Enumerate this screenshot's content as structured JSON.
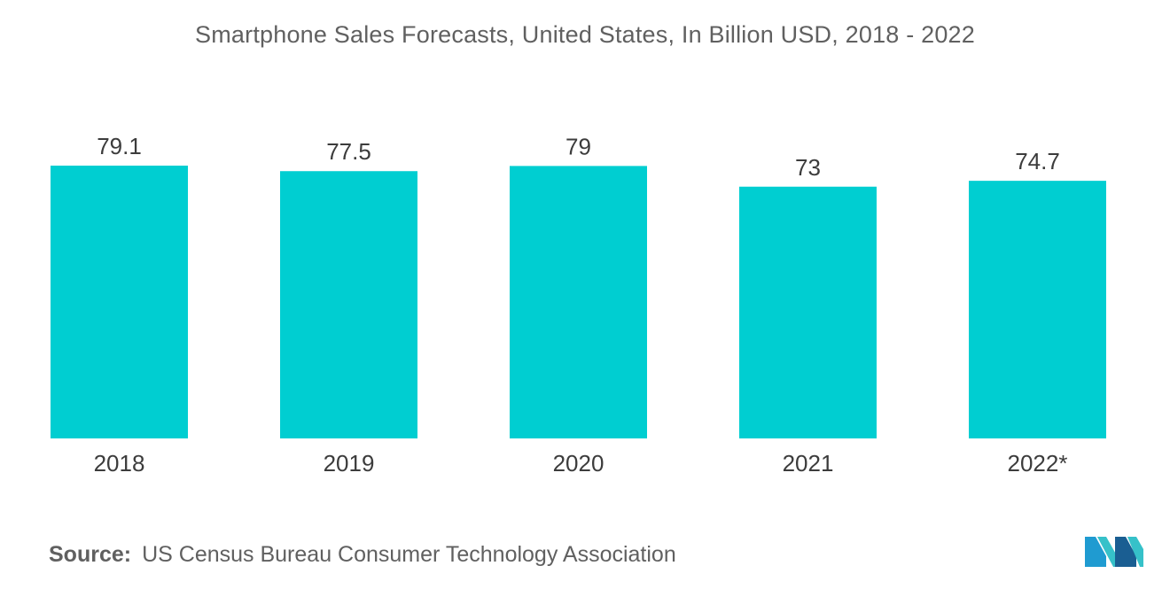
{
  "chart_data": {
    "type": "bar",
    "title": "Smartphone Sales Forecasts, United States, In Billion USD, 2018 - 2022",
    "categories": [
      "2018",
      "2019",
      "2020",
      "2021",
      "2022*"
    ],
    "values": [
      79.1,
      77.5,
      79,
      73,
      74.7
    ],
    "value_labels": [
      "79.1",
      "77.5",
      "79",
      "73",
      "74.7"
    ],
    "xlabel": "",
    "ylabel": "",
    "ylim": [
      0,
      79.1
    ],
    "grid": false,
    "legend": "none",
    "bar_color": "#00CED1"
  },
  "source": {
    "label": "Source:",
    "text": "US Census Bureau Consumer Technology Association"
  },
  "logo": {
    "icon": "mordor-intelligence-logo",
    "colors": [
      "#1f9bd1",
      "#36c1c9",
      "#1a5e92"
    ]
  }
}
